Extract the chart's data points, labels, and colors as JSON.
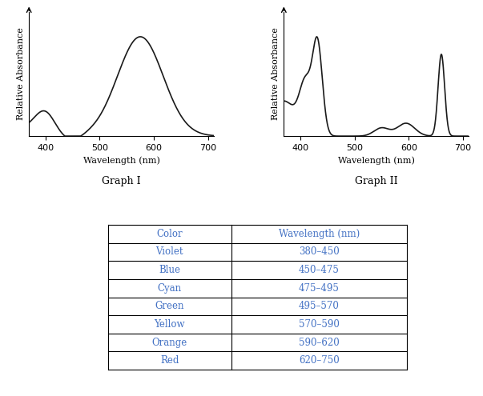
{
  "graph1_label": "Graph I",
  "graph2_label": "Graph II",
  "xlabel": "Wavelength (nm)",
  "ylabel": "Relative Absorbance",
  "xlim": [
    370,
    710
  ],
  "xticks": [
    400,
    500,
    600,
    700
  ],
  "table_colors": {
    "text": "#4472c4",
    "border": "#000000"
  },
  "table_data": {
    "headers": [
      "Color",
      "Wavelength (nm)"
    ],
    "rows": [
      [
        "Violet",
        "380–450"
      ],
      [
        "Blue",
        "450–475"
      ],
      [
        "Cyan",
        "475–495"
      ],
      [
        "Green",
        "495–570"
      ],
      [
        "Yellow",
        "570–590"
      ],
      [
        "Orange",
        "590–620"
      ],
      [
        "Red",
        "620–750"
      ]
    ]
  },
  "line_color": "#1a1a1a",
  "background_color": "#ffffff"
}
